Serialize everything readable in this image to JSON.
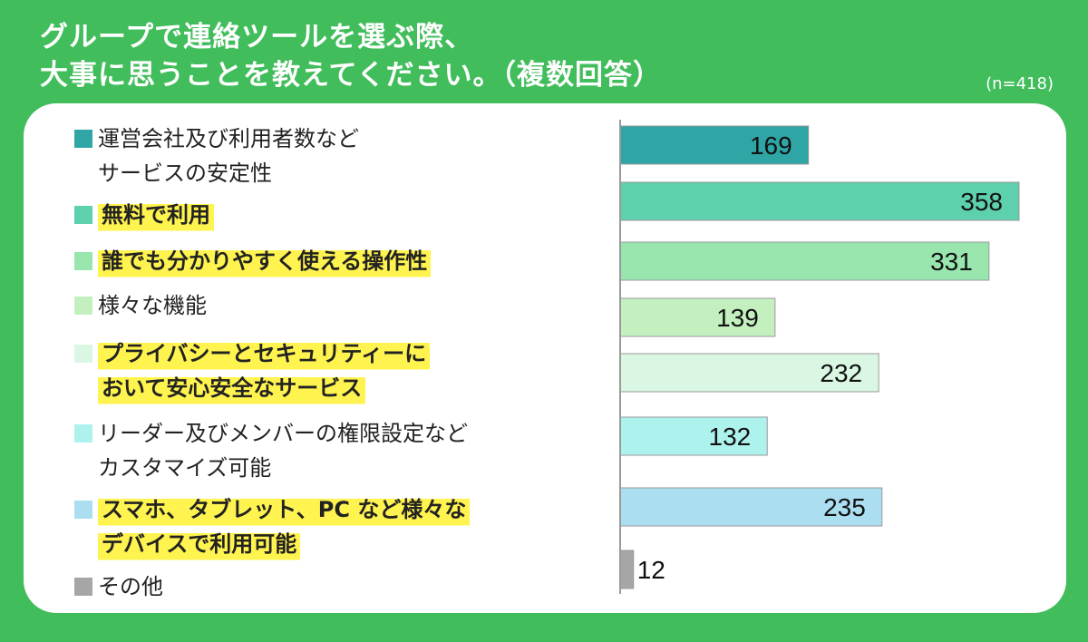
{
  "header": {
    "title_lines": [
      "グループで連絡ツールを選ぶ際、",
      "大事に思うことを教えてください。（複数回答）"
    ],
    "sample_size": "(n=418)"
  },
  "colors": {
    "background": "#41bd5b",
    "highlight": "#fff44f",
    "axis": "#999999"
  },
  "chart_data": {
    "type": "bar",
    "orientation": "horizontal",
    "title": "グループで連絡ツールを選ぶ際、大事に思うことを教えてください。（複数回答）",
    "note": "(n=418)",
    "categories": [
      "運営会社及び利用者数などサービスの安定性",
      "無料で利用",
      "誰でも分かりやすく使える操作性",
      "様々な機能",
      "プライバシーとセキュリティーにおいて安心安全なサービス",
      "リーダー及びメンバーの権限設定などカスタマイズ可能",
      "スマホ、タブレット、PCなど様々なデバイスで利用可能",
      "その他"
    ],
    "values": [
      169,
      358,
      331,
      139,
      232,
      132,
      235,
      12
    ],
    "xlim": [
      0,
      380
    ],
    "items": [
      {
        "label_lines": [
          "運営会社及び利用者数など",
          "サービスの安定性"
        ],
        "value": 169,
        "color": "#2fa5a5",
        "highlight": false
      },
      {
        "label_lines": [
          "無料で利用"
        ],
        "value": 358,
        "color": "#5dd0ad",
        "highlight": true
      },
      {
        "label_lines": [
          "誰でも分かりやすく使える操作性"
        ],
        "value": 331,
        "color": "#98e6ae",
        "highlight": true
      },
      {
        "label_lines": [
          "様々な機能"
        ],
        "value": 139,
        "color": "#c4f0c0",
        "highlight": false
      },
      {
        "label_lines": [
          "プライバシーとセキュリティーに",
          "おいて安心安全なサービス"
        ],
        "value": 232,
        "color": "#daf7e4",
        "highlight": true
      },
      {
        "label_lines": [
          "リーダー及びメンバーの権限設定など",
          "カスタマイズ可能"
        ],
        "value": 132,
        "color": "#aef2ee",
        "highlight": false
      },
      {
        "label_lines": [
          "スマホ、タブレット、PC など様々な",
          "デバイスで利用可能"
        ],
        "value": 235,
        "color": "#abdef0",
        "highlight": true
      },
      {
        "label_lines": [
          "その他"
        ],
        "value": 12,
        "color": "#a6a6a6",
        "highlight": false
      }
    ]
  }
}
